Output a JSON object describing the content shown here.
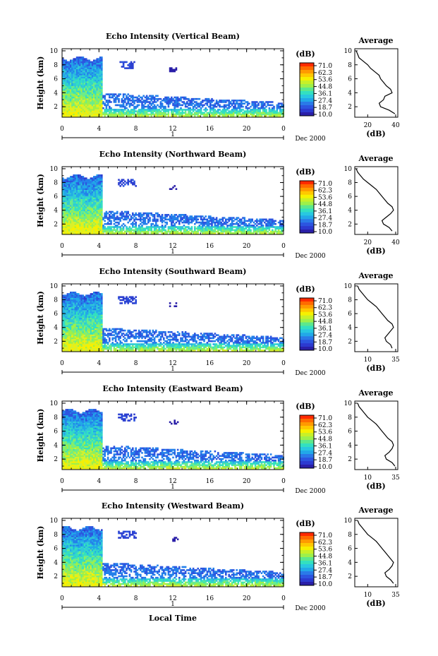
{
  "colorbar": {
    "unit": "(dB)",
    "labels": [
      "71.0",
      "62.3",
      "53.6",
      "44.8",
      "36.1",
      "27.4",
      "18.7",
      "10.0"
    ],
    "colors": [
      "#ff2a00",
      "#ff9a00",
      "#f6f000",
      "#9ef04a",
      "#33e0c0",
      "#22a8e8",
      "#2c55e0",
      "#2a1fa8"
    ]
  },
  "x_tick_labels": [
    "0",
    "4",
    "8",
    "12",
    "16",
    "20",
    "0"
  ],
  "day_label": "1",
  "month_label": "Dec 2000",
  "x_axis_label": "Local Time",
  "y_axis_label": "Height (km)",
  "y_tick_labels": [
    "10",
    "8",
    "6",
    "4",
    "2"
  ],
  "avg_title": "Average",
  "avg_xlabel": "(dB)",
  "chart_data": [
    {
      "type": "heatmap",
      "title": "Echo Intensity (Vertical Beam)",
      "xlabel": "",
      "ylabel": "Height (km)",
      "xlim": [
        0,
        24
      ],
      "ylim": [
        0.5,
        10.3
      ],
      "profile": {
        "type": "line",
        "title": "Average",
        "xlabel": "(dB)",
        "xticks": [
          "20",
          "40"
        ],
        "xlim": [
          10,
          40
        ],
        "height": [
          1,
          1.5,
          2,
          2.5,
          3,
          3.5,
          4,
          4.5,
          5,
          5.5,
          6,
          6.5,
          7,
          7.5,
          8,
          8.5,
          9,
          9.5,
          10
        ],
        "db": [
          38,
          34,
          28,
          27,
          30,
          31,
          36,
          35,
          32,
          30,
          28,
          27,
          24,
          21,
          19,
          16,
          13,
          12,
          11
        ]
      }
    },
    {
      "type": "heatmap",
      "title": "Echo Intensity (Northward Beam)",
      "xlabel": "",
      "ylabel": "Height (km)",
      "xlim": [
        0,
        24
      ],
      "ylim": [
        0.5,
        10.3
      ],
      "profile": {
        "type": "line",
        "title": "Average",
        "xlabel": "(dB)",
        "xticks": [
          "20",
          "40"
        ],
        "xlim": [
          10,
          40
        ],
        "height": [
          1,
          1.5,
          2,
          2.5,
          3,
          3.5,
          4,
          4.5,
          5,
          5.5,
          6,
          6.5,
          7,
          7.5,
          8,
          8.5,
          9,
          9.5,
          10
        ],
        "db": [
          36,
          34,
          30,
          29,
          32,
          35,
          37,
          36,
          33,
          31,
          29,
          27,
          25,
          22,
          19,
          16,
          14,
          12,
          11
        ]
      }
    },
    {
      "type": "heatmap",
      "title": "Echo Intensity (Southward Beam)",
      "xlabel": "",
      "ylabel": "Height (km)",
      "xlim": [
        0,
        24
      ],
      "ylim": [
        0.5,
        10.3
      ],
      "profile": {
        "type": "line",
        "title": "Average",
        "xlabel": "(dB)",
        "xticks": [
          "10",
          "35"
        ],
        "xlim": [
          8,
          38
        ],
        "height": [
          1,
          1.5,
          2,
          2.5,
          3,
          3.5,
          4,
          4.5,
          5,
          5.5,
          6,
          6.5,
          7,
          7.5,
          8,
          8.5,
          9,
          9.5,
          10
        ],
        "db": [
          34,
          33,
          30,
          29,
          31,
          33,
          35,
          34,
          31,
          29,
          27,
          25,
          23,
          20,
          17,
          15,
          13,
          11,
          10
        ]
      }
    },
    {
      "type": "heatmap",
      "title": "Echo Intensity (Eastward Beam)",
      "xlabel": "",
      "ylabel": "Height (km)",
      "xlim": [
        0,
        24
      ],
      "ylim": [
        0.5,
        10.3
      ],
      "profile": {
        "type": "line",
        "title": "Average",
        "xlabel": "(dB)",
        "xticks": [
          "10",
          "35"
        ],
        "xlim": [
          8,
          38
        ],
        "height": [
          1,
          1.5,
          2,
          2.5,
          3,
          3.5,
          4,
          4.5,
          5,
          5.5,
          6,
          6.5,
          7,
          7.5,
          8,
          8.5,
          9,
          9.5,
          10
        ],
        "db": [
          36,
          34,
          30,
          29,
          32,
          34,
          35,
          34,
          31,
          29,
          27,
          25,
          23,
          20,
          17,
          15,
          13,
          11,
          10
        ]
      }
    },
    {
      "type": "heatmap",
      "title": "Echo Intensity (Westward Beam)",
      "xlabel": "Local Time",
      "ylabel": "Height (km)",
      "xlim": [
        0,
        24
      ],
      "ylim": [
        0.5,
        10.3
      ],
      "profile": {
        "type": "line",
        "title": "Average",
        "xlabel": "(dB)",
        "xticks": [
          "10",
          "35"
        ],
        "xlim": [
          8,
          38
        ],
        "height": [
          1,
          1.5,
          2,
          2.5,
          3,
          3.5,
          4,
          4.5,
          5,
          5.5,
          6,
          6.5,
          7,
          7.5,
          8,
          8.5,
          9,
          9.5,
          10
        ],
        "db": [
          35,
          33,
          30,
          29,
          32,
          34,
          35,
          33,
          31,
          29,
          27,
          25,
          23,
          20,
          17,
          15,
          13,
          11,
          10
        ]
      }
    }
  ]
}
